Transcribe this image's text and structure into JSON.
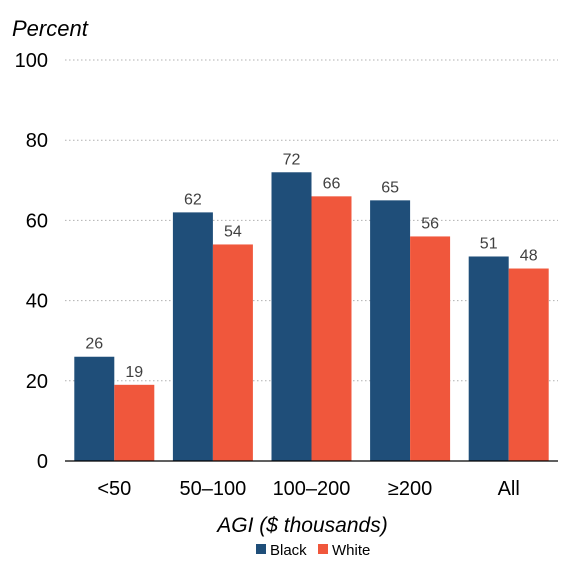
{
  "chart_data": {
    "type": "bar",
    "title": "",
    "ylabel": "Percent",
    "xlabel": "AGI ($ thousands)",
    "categories": [
      "<50",
      "50–100",
      "100–200",
      "≥200",
      "All"
    ],
    "series": [
      {
        "name": "Black",
        "color": "#1f4e79",
        "values": [
          26,
          62,
          72,
          65,
          51
        ]
      },
      {
        "name": "White",
        "color": "#f0573c",
        "values": [
          19,
          54,
          66,
          56,
          48
        ]
      }
    ],
    "ylim": [
      0,
      100
    ],
    "yticks": [
      "0",
      "20",
      "40",
      "60",
      "80",
      "100"
    ],
    "grid": true,
    "legend_position": "bottom-center"
  }
}
